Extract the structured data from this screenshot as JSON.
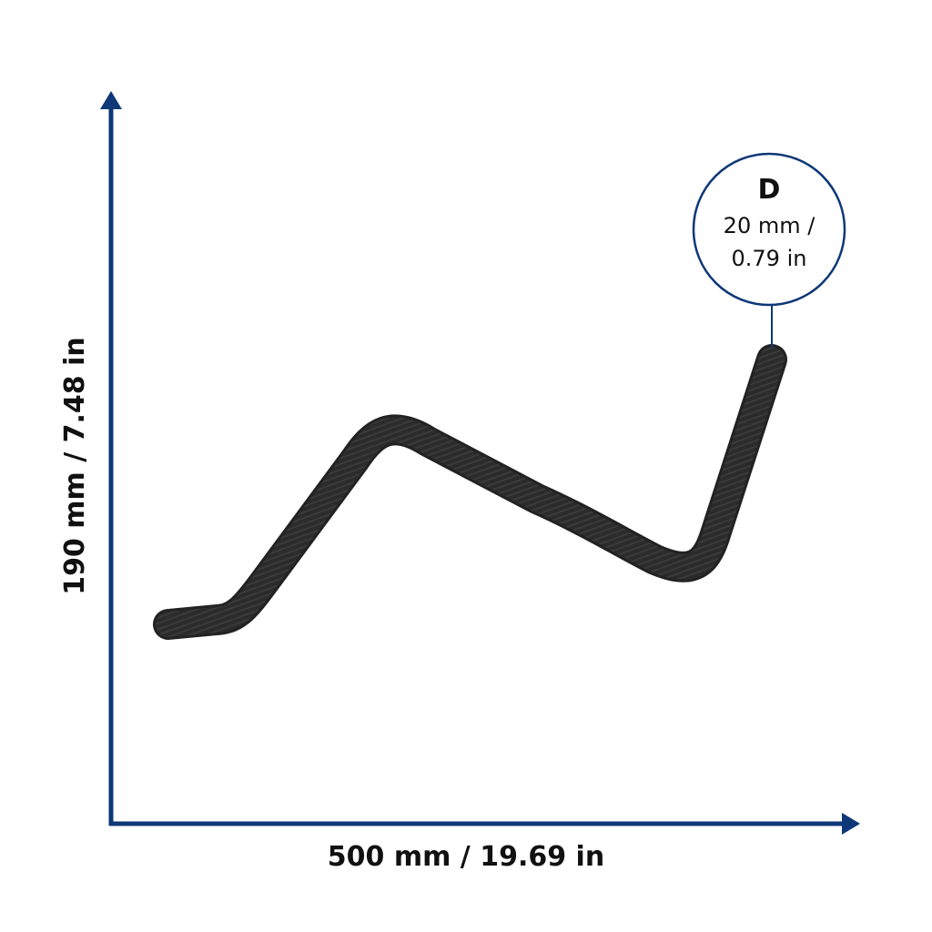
{
  "dimensions": {
    "width": "500 mm / 19.69 in",
    "height": "190 mm / 7.48 in",
    "diameter": {
      "letter": "D",
      "lines": [
        "20 mm /",
        "0.79 in"
      ]
    }
  }
}
